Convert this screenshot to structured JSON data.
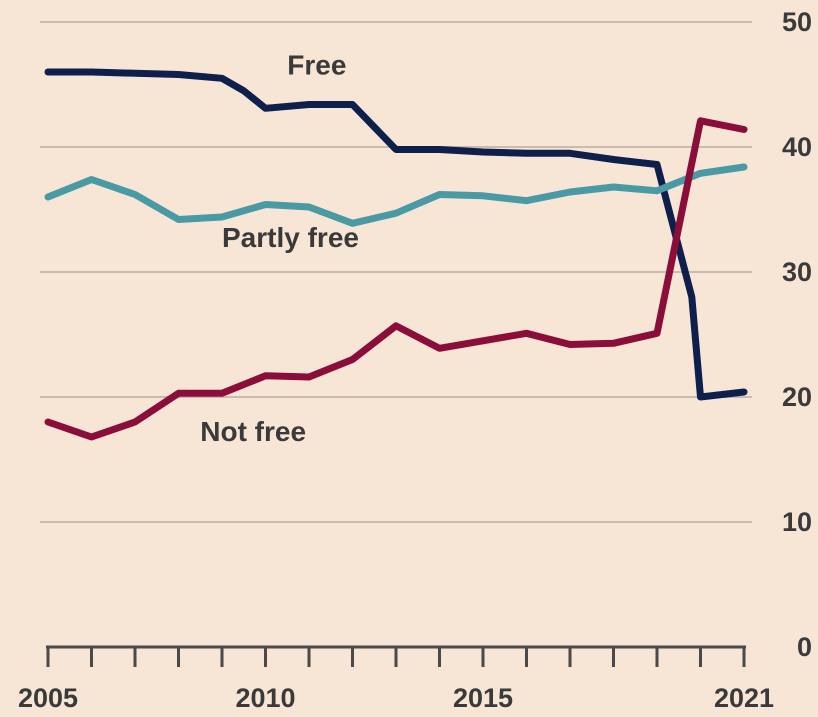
{
  "chart_data": {
    "type": "line",
    "title": "",
    "xlabel": "",
    "ylabel": "",
    "xlim": [
      2005,
      2021
    ],
    "ylim": [
      0,
      50
    ],
    "yticks": [
      0,
      10,
      20,
      30,
      40,
      50
    ],
    "ytick_labels": [
      "0",
      "10",
      "20",
      "30",
      "40",
      "50"
    ],
    "xtick_labels": [
      "2005",
      "2010",
      "2015",
      "2021"
    ],
    "xtick_label_years": [
      2005,
      2010,
      2015,
      2021
    ],
    "minor_xticks": [
      2005,
      2006,
      2007,
      2008,
      2009,
      2010,
      2011,
      2012,
      2013,
      2014,
      2015,
      2016,
      2017,
      2018,
      2019,
      2020,
      2021
    ],
    "grid": true,
    "y_axis_side": "right",
    "legend": "inline labels",
    "series": [
      {
        "name": "Free",
        "color": "#0f1f4b",
        "x": [
          2005,
          2006,
          2007,
          2008,
          2009,
          2009.5,
          2010,
          2011,
          2012,
          2013,
          2014,
          2015,
          2016,
          2017,
          2018,
          2019,
          2019.8,
          2020,
          2021
        ],
        "values": [
          46,
          46,
          45.9,
          45.8,
          45.5,
          44.5,
          43.1,
          43.4,
          43.4,
          39.8,
          39.8,
          39.6,
          39.5,
          39.5,
          39.0,
          38.6,
          28.0,
          20.0,
          20.4
        ],
        "label_anchor": [
          2010.5,
          45.8
        ]
      },
      {
        "name": "Partly free",
        "color": "#4a9aa6",
        "x": [
          2005,
          2006,
          2007,
          2008,
          2009,
          2010,
          2011,
          2012,
          2013,
          2014,
          2015,
          2016,
          2017,
          2018,
          2019,
          2020,
          2021
        ],
        "values": [
          36.0,
          37.4,
          36.2,
          34.2,
          34.4,
          35.4,
          35.2,
          33.9,
          34.7,
          36.2,
          36.1,
          35.7,
          36.4,
          36.8,
          36.5,
          37.9,
          38.4
        ],
        "label_anchor": [
          2009.0,
          32.0
        ]
      },
      {
        "name": "Not free",
        "color": "#8b0e3a",
        "x": [
          2005,
          2006,
          2007,
          2008,
          2009,
          2010,
          2011,
          2012,
          2013,
          2014,
          2015,
          2016,
          2017,
          2018,
          2019,
          2020,
          2021
        ],
        "values": [
          18.0,
          16.8,
          18.0,
          20.3,
          20.3,
          21.7,
          21.6,
          23.0,
          25.7,
          23.9,
          24.5,
          25.1,
          24.2,
          24.3,
          25.1,
          42.1,
          41.4
        ],
        "label_anchor": [
          2008.5,
          16.5
        ]
      }
    ]
  }
}
